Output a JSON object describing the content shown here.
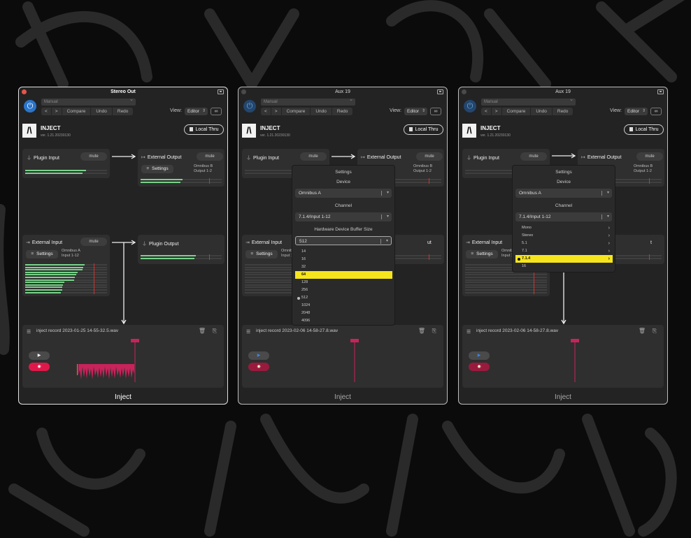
{
  "windows": [
    {
      "title": "Stereo Out",
      "preset": "Manual",
      "nav": {
        "back": "<",
        "forward": ">",
        "compare": "Compare",
        "undo": "Undo",
        "redo": "Redo"
      },
      "view_label": "View:",
      "view_mode": "Editor",
      "product": {
        "name": "INJECT",
        "version": "ver. 1.21.20230130",
        "logo": "/\\"
      },
      "local_thru": "Local Thru",
      "plugin_input": {
        "title": "Plugin Input",
        "mute": "mute"
      },
      "external_output": {
        "title": "External Output",
        "mute": "mute",
        "settings": "Settings",
        "device": "Omnibus B",
        "channels": "Output 1-2"
      },
      "external_input": {
        "title": "External Input",
        "mute": "mute",
        "settings": "Settings",
        "device": "Omnibus A",
        "channels": "Input 1-12"
      },
      "plugin_output": {
        "title": "Plugin Output"
      },
      "recording": {
        "filename": "inject record 2023-01-25 14-55-32.5.wav"
      },
      "footer": "Inject"
    },
    {
      "title": "Aux 19",
      "preset": "Manual",
      "nav": {
        "back": "<",
        "forward": ">",
        "compare": "Compare",
        "undo": "Undo",
        "redo": "Redo"
      },
      "view_label": "View:",
      "view_mode": "Editor",
      "product": {
        "name": "INJECT",
        "version": "ver. 1.21.20230130",
        "logo": "/\\"
      },
      "local_thru": "Local Thru",
      "plugin_input": {
        "title": "Plugin Input",
        "mute": "mute"
      },
      "external_output": {
        "title": "External Output",
        "mute": "mute",
        "device": "Omnibus B",
        "channels": "Output 1-2"
      },
      "external_input": {
        "title": "External Input",
        "settings": "Settings",
        "device": "Omnibus A",
        "channels": "Input 1"
      },
      "plugin_output": {
        "title": "ut"
      },
      "recording": {
        "filename": "inject record 2023-02-06 14-58-27.8.wav"
      },
      "footer": "Inject",
      "settings_popup": {
        "title": "Settings",
        "device_label": "Device",
        "device_value": "Omnibus A",
        "channel_label": "Channel",
        "channel_value": "7.1.4/Input 1-12",
        "buffer_label": "Hardware Device Buffer Size",
        "buffer_value": "512",
        "options": [
          "14",
          "16",
          "32",
          "64",
          "128",
          "256",
          "512",
          "1024",
          "2048",
          "4096"
        ],
        "highlighted": "64",
        "selected": "512"
      }
    },
    {
      "title": "Aux 19",
      "preset": "Manual",
      "nav": {
        "back": "<",
        "forward": ">",
        "compare": "Compare",
        "undo": "Undo",
        "redo": "Redo"
      },
      "view_label": "View:",
      "view_mode": "Editor",
      "product": {
        "name": "INJECT",
        "version": "ver. 1.21.20230130",
        "logo": "/\\"
      },
      "local_thru": "Local Thru",
      "plugin_input": {
        "title": "Plugin Input",
        "mute": "mute"
      },
      "external_output": {
        "title": "External Output",
        "mute": "mute",
        "device": "Omnibus B",
        "channels": "Output 1-2"
      },
      "external_input": {
        "title": "External Input",
        "settings": "Settings",
        "device": "Omnibus A",
        "channels": "Input 1"
      },
      "plugin_output": {
        "title": "t"
      },
      "recording": {
        "filename": "inject record 2023-02-06 14-58-27.8.wav"
      },
      "footer": "Inject",
      "settings_popup": {
        "title": "Settings",
        "device_label": "Device",
        "device_value": "Omnibus A",
        "channel_label": "Channel",
        "channel_value": "7.1.4/Input 1-12",
        "options": [
          "Mono",
          "Stereo",
          "5.1",
          "7.1",
          "7.1.4",
          "16"
        ],
        "highlighted": "7.1.4"
      }
    }
  ],
  "colors": {
    "accent_yellow": "#f6e51c",
    "record_red": "#e0184a",
    "meter_green": "#79d28a",
    "power_blue": "#2a75c9"
  },
  "meters": {
    "w1_in": [
      0.74,
      0.7
    ],
    "w1_ext_out": [
      0.52,
      0.49
    ],
    "w1_ext_in": [
      0.73,
      0.71,
      0.7,
      0.64,
      0.62,
      0.61,
      0.6,
      0.48,
      0.46,
      0.45,
      0.45,
      0.44
    ],
    "w1_plug_out": [
      0.68,
      0.66
    ]
  }
}
